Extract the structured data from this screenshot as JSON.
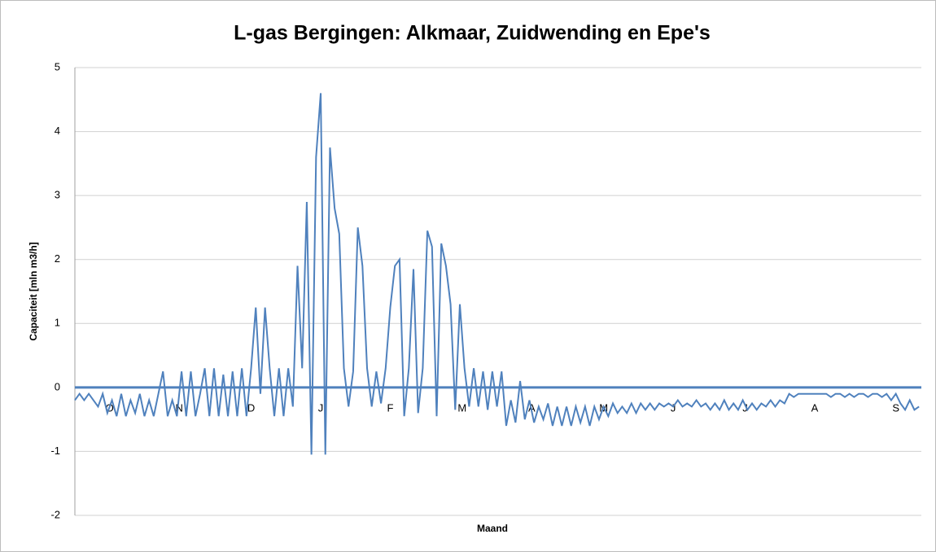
{
  "chart_data": {
    "type": "line",
    "title": "L-gas Bergingen: Alkmaar, Zuidwending en Epe's",
    "xlabel": "Maand",
    "ylabel": "Capaciteit [mln m3/h]",
    "xlim": [
      0,
      365
    ],
    "xticks": [
      {
        "value": 15,
        "label": "O"
      },
      {
        "value": 45,
        "label": "N"
      },
      {
        "value": 76,
        "label": "D"
      },
      {
        "value": 106,
        "label": "J"
      },
      {
        "value": 136,
        "label": "F"
      },
      {
        "value": 167,
        "label": "M"
      },
      {
        "value": 197,
        "label": "A"
      },
      {
        "value": 228,
        "label": "M"
      },
      {
        "value": 258,
        "label": "J"
      },
      {
        "value": 289,
        "label": "J"
      },
      {
        "value": 319,
        "label": "A"
      },
      {
        "value": 354,
        "label": "S"
      }
    ],
    "ylim": [
      -2,
      5
    ],
    "yticks": [
      -2,
      -1,
      0,
      1,
      2,
      3,
      4,
      5
    ],
    "grid": true,
    "x": [
      0,
      2,
      4,
      6,
      8,
      10,
      12,
      14,
      16,
      18,
      20,
      22,
      24,
      26,
      28,
      30,
      32,
      34,
      36,
      38,
      40,
      42,
      44,
      46,
      48,
      50,
      52,
      54,
      56,
      58,
      60,
      62,
      64,
      66,
      68,
      70,
      72,
      74,
      76,
      78,
      80,
      82,
      84,
      86,
      88,
      90,
      92,
      94,
      96,
      98,
      100,
      102,
      104,
      106,
      108,
      110,
      112,
      114,
      116,
      118,
      120,
      122,
      124,
      126,
      128,
      130,
      132,
      134,
      136,
      138,
      140,
      142,
      144,
      146,
      148,
      150,
      152,
      154,
      156,
      158,
      160,
      162,
      164,
      166,
      168,
      170,
      172,
      174,
      176,
      178,
      180,
      182,
      184,
      186,
      188,
      190,
      192,
      194,
      196,
      198,
      200,
      202,
      204,
      206,
      208,
      210,
      212,
      214,
      216,
      218,
      220,
      222,
      224,
      226,
      228,
      230,
      232,
      234,
      236,
      238,
      240,
      242,
      244,
      246,
      248,
      250,
      252,
      254,
      256,
      258,
      260,
      262,
      264,
      266,
      268,
      270,
      272,
      274,
      276,
      278,
      280,
      282,
      284,
      286,
      288,
      290,
      292,
      294,
      296,
      298,
      300,
      302,
      304,
      306,
      308,
      310,
      312,
      314,
      316,
      318,
      320,
      322,
      324,
      326,
      328,
      330,
      332,
      334,
      336,
      338,
      340,
      342,
      344,
      346,
      348,
      350,
      352,
      354,
      356,
      358,
      360,
      362,
      364
    ],
    "series": [
      {
        "name": "Capaciteit",
        "color": "#4f81bd",
        "values": [
          -0.2,
          -0.1,
          -0.2,
          -0.1,
          -0.2,
          -0.3,
          -0.1,
          -0.4,
          -0.2,
          -0.45,
          -0.1,
          -0.45,
          -0.2,
          -0.4,
          -0.1,
          -0.45,
          -0.2,
          -0.45,
          -0.1,
          0.25,
          -0.45,
          -0.2,
          -0.45,
          0.25,
          -0.45,
          0.25,
          -0.45,
          -0.1,
          0.3,
          -0.45,
          0.3,
          -0.45,
          0.2,
          -0.45,
          0.25,
          -0.45,
          0.3,
          -0.45,
          0.3,
          1.25,
          -0.1,
          1.25,
          0.3,
          -0.45,
          0.3,
          -0.45,
          0.3,
          -0.3,
          1.9,
          0.3,
          2.9,
          -1.05,
          3.6,
          4.6,
          -1.05,
          3.75,
          2.8,
          2.4,
          0.3,
          -0.3,
          0.25,
          2.5,
          1.9,
          0.3,
          -0.3,
          0.25,
          -0.25,
          0.3,
          1.25,
          1.9,
          2.0,
          -0.45,
          0.3,
          1.85,
          -0.4,
          0.3,
          2.45,
          2.2,
          -0.45,
          2.25,
          1.9,
          1.3,
          -0.35,
          1.3,
          0.3,
          -0.3,
          0.3,
          -0.3,
          0.25,
          -0.35,
          0.25,
          -0.3,
          0.25,
          -0.6,
          -0.2,
          -0.55,
          0.1,
          -0.5,
          -0.2,
          -0.55,
          -0.3,
          -0.5,
          -0.25,
          -0.6,
          -0.3,
          -0.6,
          -0.3,
          -0.6,
          -0.3,
          -0.55,
          -0.3,
          -0.6,
          -0.3,
          -0.5,
          -0.3,
          -0.45,
          -0.25,
          -0.4,
          -0.3,
          -0.4,
          -0.25,
          -0.4,
          -0.25,
          -0.35,
          -0.25,
          -0.35,
          -0.25,
          -0.3,
          -0.25,
          -0.3,
          -0.2,
          -0.3,
          -0.25,
          -0.3,
          -0.2,
          -0.3,
          -0.25,
          -0.35,
          -0.25,
          -0.35,
          -0.2,
          -0.35,
          -0.25,
          -0.35,
          -0.2,
          -0.35,
          -0.25,
          -0.35,
          -0.25,
          -0.3,
          -0.2,
          -0.3,
          -0.2,
          -0.25,
          -0.1,
          -0.15,
          -0.1,
          -0.1,
          -0.1,
          -0.1,
          -0.1,
          -0.1,
          -0.1,
          -0.15,
          -0.1,
          -0.1,
          -0.15,
          -0.1,
          -0.15,
          -0.1,
          -0.1,
          -0.15,
          -0.1,
          -0.1,
          -0.15,
          -0.1,
          -0.2,
          -0.1,
          -0.25,
          -0.35,
          -0.2,
          -0.35,
          -0.3
        ]
      }
    ]
  }
}
